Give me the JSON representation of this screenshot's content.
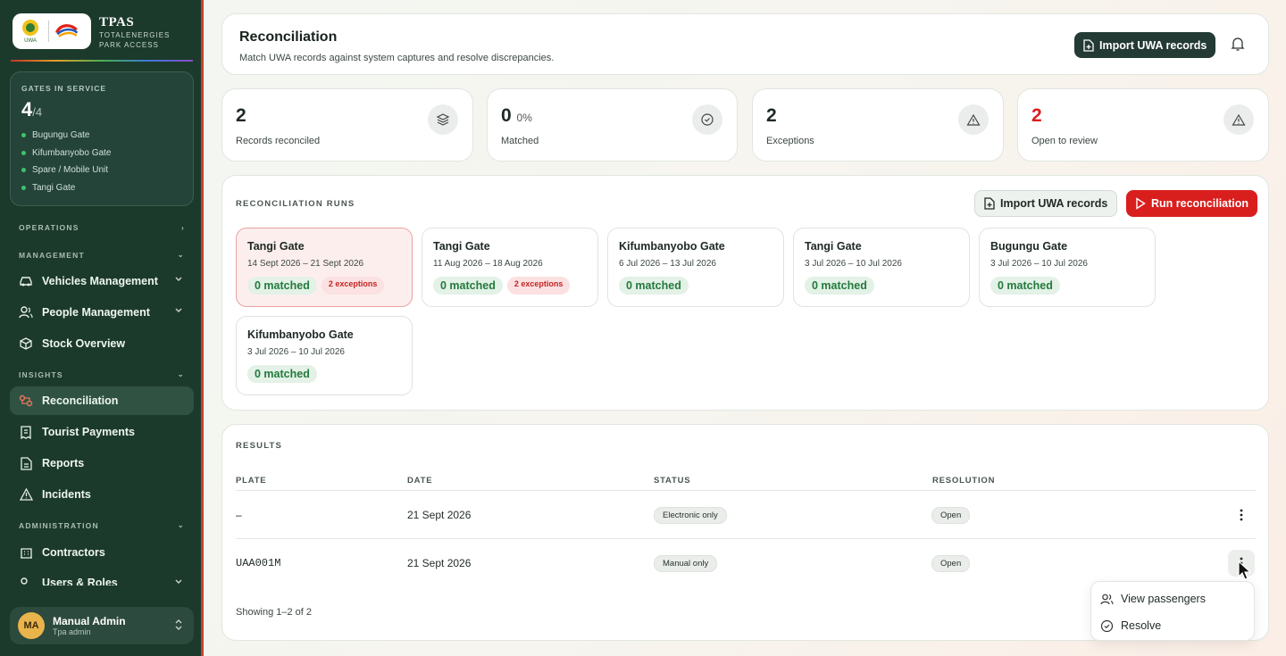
{
  "brand": {
    "title": "TPAS",
    "sub1": "TOTALENERGIES",
    "sub2": "PARK ACCESS",
    "logo_text": "UWA"
  },
  "gates": {
    "heading": "GATES IN SERVICE",
    "count": "4",
    "total": "/4",
    "items": [
      "Bugungu Gate",
      "Kifumbanyobo Gate",
      "Spare / Mobile Unit",
      "Tangi Gate"
    ]
  },
  "nav": {
    "operations": "OPERATIONS",
    "management": "MANAGEMENT",
    "vehicles": "Vehicles Management",
    "people": "People Management",
    "stock": "Stock Overview",
    "insights": "INSIGHTS",
    "reconciliation": "Reconciliation",
    "payments": "Tourist Payments",
    "reports": "Reports",
    "incidents": "Incidents",
    "administration": "ADMINISTRATION",
    "contractors": "Contractors",
    "users": "Users & Roles"
  },
  "user": {
    "initials": "MA",
    "name": "Manual Admin",
    "role": "Tpa admin"
  },
  "header": {
    "title": "Reconciliation",
    "subtitle": "Match UWA records against system captures and resolve discrepancies.",
    "import_label": "Import UWA records"
  },
  "stats": [
    {
      "value": "2",
      "suffix": "",
      "label": "Records reconciled",
      "icon": "layers-icon"
    },
    {
      "value": "0",
      "suffix": "0%",
      "label": "Matched",
      "icon": "check-circle-icon"
    },
    {
      "value": "2",
      "suffix": "",
      "label": "Exceptions",
      "icon": "warning-icon"
    },
    {
      "value": "2",
      "suffix": "",
      "label": "Open to review",
      "icon": "warning-icon",
      "color": "#d91e1e"
    }
  ],
  "runs": {
    "heading": "RECONCILIATION RUNS",
    "import_label": "Import UWA records",
    "run_label": "Run reconciliation",
    "items": [
      {
        "gate": "Tangi Gate",
        "dates": "14 Sept 2026 – 21 Sept 2026",
        "matched": "0 matched",
        "exceptions": "2 exceptions"
      },
      {
        "gate": "Tangi Gate",
        "dates": "11 Aug 2026 – 18 Aug 2026",
        "matched": "0 matched",
        "exceptions": "2 exceptions"
      },
      {
        "gate": "Kifumbanyobo Gate",
        "dates": "6 Jul 2026 – 13 Jul 2026",
        "matched": "0 matched"
      },
      {
        "gate": "Tangi Gate",
        "dates": "3 Jul 2026 – 10 Jul 2026",
        "matched": "0 matched"
      },
      {
        "gate": "Bugungu Gate",
        "dates": "3 Jul 2026 – 10 Jul 2026",
        "matched": "0 matched"
      },
      {
        "gate": "Kifumbanyobo Gate",
        "dates": "3 Jul 2026 – 10 Jul 2026",
        "matched": "0 matched"
      }
    ]
  },
  "results": {
    "heading": "RESULTS",
    "columns": [
      "PLATE",
      "DATE",
      "STATUS",
      "RESOLUTION"
    ],
    "rows": [
      {
        "plate": "–",
        "date": "21 Sept 2026",
        "status": "Electronic only",
        "resolution": "Open"
      },
      {
        "plate": "UAA001M",
        "date": "21 Sept 2026",
        "status": "Manual only",
        "resolution": "Open"
      }
    ],
    "footer": "Showing 1–2 of 2"
  },
  "menu": {
    "view": "View passengers",
    "resolve": "Resolve"
  }
}
